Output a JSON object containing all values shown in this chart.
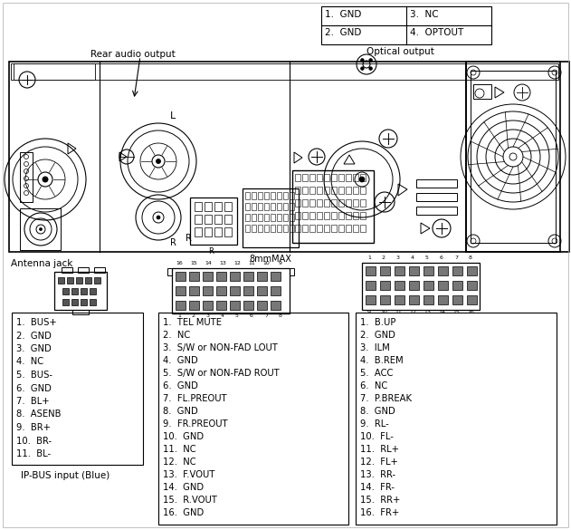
{
  "bg_color": "#ffffff",
  "optical_rows": [
    [
      "1.  GND",
      "3.  NC"
    ],
    [
      "2.  GND",
      "4.  OPTOUT"
    ]
  ],
  "optical_label": "Optical output",
  "ipbus_label": "IP-BUS input (Blue)",
  "rear_audio_label": "Rear audio output",
  "antenna_label": "Antenna jack",
  "8mm_label": "8mmMAX",
  "L_label": "L",
  "R_label": "R",
  "ipbus_pins": [
    "1.  BUS+",
    "2.  GND",
    "3.  GND",
    "4.  NC",
    "5.  BUS-",
    "6.  GND",
    "7.  BL+",
    "8.  ASENB",
    "9.  BR+",
    "10.  BR-",
    "11.  BL-"
  ],
  "mid_pins": [
    "1.  TEL MUTE",
    "2.  NC",
    "3.  S/W or NON-FAD LOUT",
    "4.  GND",
    "5.  S/W or NON-FAD ROUT",
    "6.  GND",
    "7.  FL.PREOUT",
    "8.  GND",
    "9.  FR.PREOUT",
    "10.  GND",
    "11.  NC",
    "12.  NC",
    "13.  F.VOUT",
    "14.  GND",
    "15.  R.VOUT",
    "16.  GND"
  ],
  "right_pins": [
    "1.  B.UP",
    "2.  GND",
    "3.  ILM",
    "4.  B.REM",
    "5.  ACC",
    "6.  NC",
    "7.  P.BREAK",
    "8.  GND",
    "9.  RL-",
    "10.  FL-",
    "11.  RL+",
    "12.  FL+",
    "13.  RR-",
    "14.  FR-",
    "15.  RR+",
    "16.  FR+"
  ]
}
